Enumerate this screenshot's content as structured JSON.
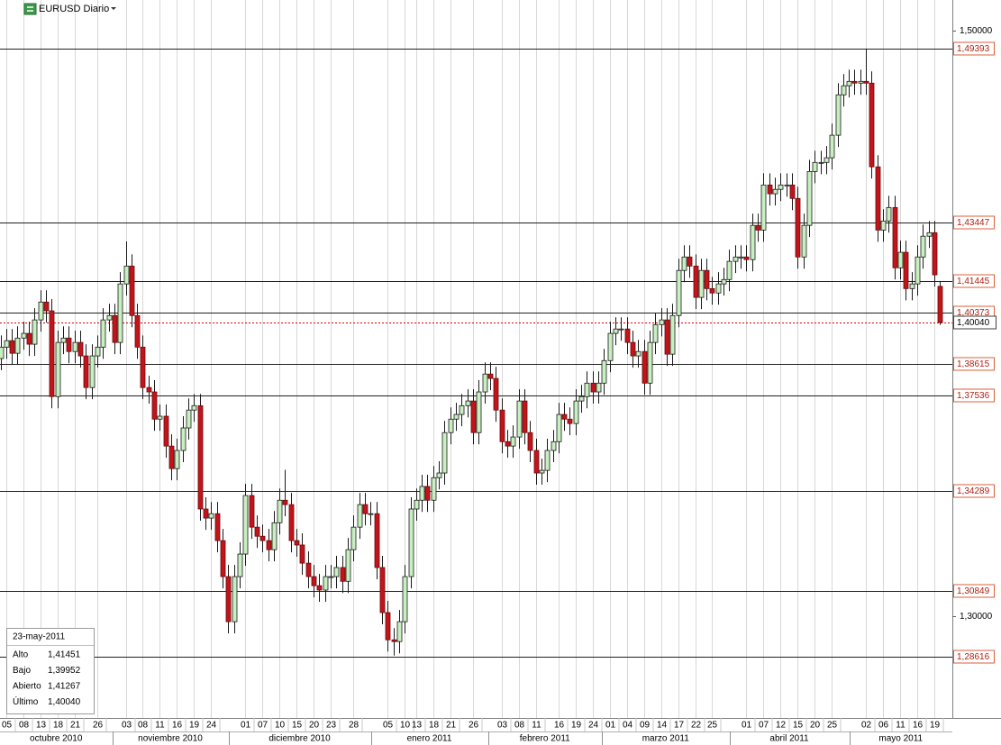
{
  "chart_data": {
    "type": "candlestick",
    "title": "EURUSD Diario",
    "x": [
      null,
      "05",
      null,
      null,
      "08",
      null,
      null,
      "13",
      null,
      null,
      "18",
      null,
      null,
      "21",
      null,
      null,
      null,
      "26",
      null,
      null,
      null,
      null,
      "03",
      null,
      null,
      "08",
      null,
      null,
      "11",
      null,
      null,
      "16",
      null,
      null,
      "19",
      null,
      null,
      "24",
      null,
      null,
      null,
      null,
      null,
      "01",
      null,
      null,
      "07",
      null,
      null,
      "10",
      null,
      null,
      "15",
      null,
      null,
      "20",
      null,
      null,
      "23",
      null,
      null,
      null,
      "28",
      null,
      null,
      null,
      null,
      null,
      "05",
      null,
      null,
      "10",
      null,
      "13",
      null,
      null,
      "18",
      null,
      null,
      "21",
      null,
      null,
      null,
      "26",
      null,
      null,
      null,
      null,
      "03",
      null,
      null,
      "08",
      null,
      null,
      "11",
      null,
      null,
      null,
      "16",
      null,
      null,
      "19",
      null,
      null,
      "24",
      null,
      null,
      "01",
      null,
      null,
      "04",
      null,
      null,
      "09",
      null,
      null,
      "14",
      null,
      null,
      "17",
      null,
      null,
      "22",
      null,
      null,
      "25",
      null,
      null,
      null,
      null,
      null,
      "01",
      null,
      null,
      "07",
      null,
      null,
      "12",
      null,
      null,
      "15",
      null,
      null,
      "20",
      null,
      null,
      "25",
      null,
      null,
      null,
      null,
      null,
      "02",
      null,
      null,
      "06",
      null,
      null,
      "11",
      null,
      null,
      "16",
      null,
      null,
      "19",
      null
    ],
    "months": [
      "octubre 2010",
      "noviembre 2010",
      "diciembre 2010",
      "enero 2011",
      "febrero 2011",
      "marzo 2011",
      "abril 2011",
      "mayo 2011"
    ],
    "open": [
      1.388,
      1.3919,
      1.3941,
      1.3898,
      1.395,
      1.3966,
      1.3929,
      1.4012,
      1.4073,
      1.4043,
      1.375,
      1.3935,
      1.395,
      1.3904,
      1.3935,
      1.3889,
      1.3781,
      1.3889,
      1.3919,
      1.4012,
      1.4027,
      1.3935,
      1.4135,
      1.4196,
      1.4027,
      1.3919,
      1.3781,
      1.3766,
      1.3673,
      1.3683,
      1.3581,
      1.3504,
      1.3566,
      1.3643,
      1.3704,
      1.3719,
      1.3366,
      1.3335,
      1.335,
      1.3258,
      1.3135,
      1.2981,
      1.3135,
      1.3212,
      1.3412,
      1.3304,
      1.3273,
      1.3258,
      1.3227,
      1.3319,
      1.3396,
      1.3381,
      1.3258,
      1.3243,
      1.3181,
      1.3135,
      1.3104,
      1.3089,
      1.3135,
      1.3135,
      1.3166,
      1.3119,
      1.3227,
      1.3304,
      1.3381,
      1.335,
      1.335,
      1.3166,
      1.3012,
      1.2919,
      1.2913,
      1.2981,
      1.3135,
      1.3366,
      1.3396,
      1.3443,
      1.3396,
      1.3473,
      1.3489,
      1.3627,
      1.3673,
      1.3689,
      1.3719,
      1.3735,
      1.3627,
      1.3766,
      1.3827,
      1.3812,
      1.3704,
      1.3596,
      1.3581,
      1.3612,
      1.3735,
      1.3627,
      1.3566,
      1.3489,
      1.3498,
      1.3566,
      1.3596,
      1.3689,
      1.3673,
      1.3658,
      1.3735,
      1.375,
      1.3796,
      1.3766,
      1.3796,
      1.3873,
      1.3966,
      1.3981,
      1.3981,
      1.3935,
      1.3889,
      1.3904,
      1.3796,
      1.3935,
      1.3996,
      1.4012,
      1.3895,
      1.4027,
      1.4181,
      1.4227,
      1.4196,
      1.4089,
      1.4181,
      1.4119,
      1.4104,
      1.4135,
      1.415,
      1.4212,
      1.4227,
      1.4227,
      1.4218,
      1.4335,
      1.4319,
      1.4473,
      1.4443,
      1.4458,
      1.4473,
      1.4473,
      1.4427,
      1.4227,
      1.4335,
      1.4519,
      1.455,
      1.455,
      1.4566,
      1.4643,
      1.4781,
      1.4812,
      1.4827,
      1.4821,
      1.4827,
      1.4821,
      1.4535,
      1.4319,
      1.435,
      1.4396,
      1.419,
      1.4243,
      1.4119,
      1.4135,
      1.4227,
      1.4298,
      1.431,
      1.41267
    ],
    "high": [
      1.3959,
      1.3981,
      1.3981,
      1.399,
      1.4006,
      1.4006,
      1.4052,
      1.4113,
      1.4113,
      1.4083,
      1.3975,
      1.399,
      1.399,
      1.3975,
      1.3975,
      1.3929,
      1.3929,
      1.3959,
      1.4052,
      1.4067,
      1.4067,
      1.4175,
      1.428,
      1.4236,
      1.4067,
      1.3959,
      1.3821,
      1.3806,
      1.3723,
      1.3723,
      1.3621,
      1.3606,
      1.3683,
      1.3744,
      1.3759,
      1.3759,
      1.3406,
      1.339,
      1.339,
      1.3298,
      1.3175,
      1.3175,
      1.3252,
      1.3452,
      1.3452,
      1.3344,
      1.3313,
      1.3298,
      1.3359,
      1.3436,
      1.35,
      1.3421,
      1.3298,
      1.3283,
      1.3221,
      1.3175,
      1.3144,
      1.3175,
      1.3175,
      1.3206,
      1.3206,
      1.3267,
      1.3344,
      1.3421,
      1.3421,
      1.339,
      1.339,
      1.3206,
      1.3052,
      1.2959,
      1.3021,
      1.3175,
      1.3406,
      1.3436,
      1.3483,
      1.3483,
      1.3513,
      1.3529,
      1.3667,
      1.3713,
      1.3729,
      1.3759,
      1.3775,
      1.3775,
      1.3806,
      1.3867,
      1.3867,
      1.3852,
      1.3744,
      1.3636,
      1.3652,
      1.3775,
      1.3775,
      1.3667,
      1.3606,
      1.3538,
      1.3606,
      1.3636,
      1.3729,
      1.3729,
      1.3713,
      1.3775,
      1.379,
      1.3836,
      1.3836,
      1.3836,
      1.3913,
      1.4006,
      1.4021,
      1.4021,
      1.4021,
      1.3975,
      1.3944,
      1.3944,
      1.3975,
      1.4036,
      1.4052,
      1.4052,
      1.4067,
      1.4221,
      1.4267,
      1.4267,
      1.4236,
      1.4221,
      1.4221,
      1.4159,
      1.4175,
      1.419,
      1.4252,
      1.4267,
      1.4267,
      1.4267,
      1.4375,
      1.4375,
      1.4513,
      1.4513,
      1.4498,
      1.4513,
      1.4513,
      1.4513,
      1.4467,
      1.4375,
      1.4559,
      1.459,
      1.459,
      1.4606,
      1.4683,
      1.4821,
      1.4852,
      1.4867,
      1.4867,
      1.4867,
      1.4939,
      1.4861,
      1.4575,
      1.439,
      1.4436,
      1.4436,
      1.4283,
      1.4283,
      1.4175,
      1.4267,
      1.4338,
      1.435,
      1.435,
      1.41451
    ],
    "low": [
      1.384,
      1.3879,
      1.3858,
      1.3858,
      1.391,
      1.3889,
      1.3889,
      1.3972,
      1.4003,
      1.371,
      1.371,
      1.3895,
      1.3864,
      1.3864,
      1.3849,
      1.3741,
      1.3741,
      1.3849,
      1.3879,
      1.3972,
      1.3895,
      1.3895,
      1.4095,
      1.3987,
      1.3879,
      1.3741,
      1.3726,
      1.3633,
      1.3633,
      1.3541,
      1.3464,
      1.3464,
      1.3526,
      1.3603,
      1.3664,
      1.3326,
      1.3295,
      1.3295,
      1.3218,
      1.3095,
      1.2941,
      1.2941,
      1.3095,
      1.3172,
      1.3264,
      1.3233,
      1.3218,
      1.3187,
      1.3187,
      1.3279,
      1.3341,
      1.3218,
      1.3203,
      1.3141,
      1.3095,
      1.3064,
      1.3049,
      1.3049,
      1.3095,
      1.3095,
      1.3079,
      1.3079,
      1.3187,
      1.3264,
      1.331,
      1.331,
      1.3126,
      1.2972,
      1.2879,
      1.2865,
      1.2873,
      1.2941,
      1.3095,
      1.3326,
      1.3356,
      1.3356,
      1.3356,
      1.3433,
      1.3449,
      1.3587,
      1.3633,
      1.3649,
      1.3679,
      1.3587,
      1.3587,
      1.3726,
      1.3772,
      1.3664,
      1.3556,
      1.3541,
      1.3541,
      1.3572,
      1.3587,
      1.3526,
      1.3449,
      1.3449,
      1.3458,
      1.3526,
      1.3556,
      1.3633,
      1.3618,
      1.3618,
      1.3695,
      1.371,
      1.3726,
      1.3726,
      1.3756,
      1.3833,
      1.3926,
      1.3941,
      1.3895,
      1.3849,
      1.3849,
      1.3756,
      1.3756,
      1.3895,
      1.3956,
      1.3855,
      1.3855,
      1.3987,
      1.4141,
      1.4156,
      1.4049,
      1.4049,
      1.4079,
      1.4064,
      1.4064,
      1.4095,
      1.411,
      1.4172,
      1.4187,
      1.4178,
      1.4178,
      1.4279,
      1.4279,
      1.4403,
      1.4403,
      1.4418,
      1.4433,
      1.4387,
      1.4187,
      1.4187,
      1.4295,
      1.4479,
      1.451,
      1.451,
      1.4526,
      1.4603,
      1.4741,
      1.4772,
      1.4781,
      1.4781,
      1.4781,
      1.4495,
      1.4279,
      1.4279,
      1.431,
      1.415,
      1.415,
      1.4079,
      1.4079,
      1.4095,
      1.4187,
      1.4258,
      1.4126,
      1.39952
    ],
    "close": [
      1.3919,
      1.3941,
      1.3898,
      1.395,
      1.3966,
      1.3929,
      1.4012,
      1.4073,
      1.4043,
      1.375,
      1.3935,
      1.395,
      1.3904,
      1.3935,
      1.3889,
      1.3781,
      1.3889,
      1.3919,
      1.4012,
      1.4027,
      1.3935,
      1.4135,
      1.4196,
      1.4027,
      1.3919,
      1.3781,
      1.3766,
      1.3673,
      1.3683,
      1.3581,
      1.3504,
      1.3566,
      1.3643,
      1.3704,
      1.3719,
      1.3366,
      1.3335,
      1.335,
      1.3258,
      1.3135,
      1.2981,
      1.3135,
      1.3212,
      1.3412,
      1.3304,
      1.3273,
      1.3258,
      1.3227,
      1.3319,
      1.3396,
      1.3381,
      1.3258,
      1.3243,
      1.3181,
      1.3135,
      1.3104,
      1.3089,
      1.3135,
      1.3135,
      1.3166,
      1.3119,
      1.3227,
      1.3304,
      1.3381,
      1.335,
      1.335,
      1.3166,
      1.3012,
      1.2919,
      1.2913,
      1.2981,
      1.3135,
      1.3366,
      1.3396,
      1.3443,
      1.3396,
      1.3473,
      1.3489,
      1.3627,
      1.3673,
      1.3689,
      1.3719,
      1.3735,
      1.3627,
      1.3766,
      1.3827,
      1.3812,
      1.3704,
      1.3596,
      1.3581,
      1.3612,
      1.3735,
      1.3627,
      1.3566,
      1.3489,
      1.3498,
      1.3566,
      1.3596,
      1.3689,
      1.3673,
      1.3658,
      1.3735,
      1.375,
      1.3796,
      1.3766,
      1.3796,
      1.3873,
      1.3966,
      1.3981,
      1.3981,
      1.3935,
      1.3889,
      1.3904,
      1.3796,
      1.3935,
      1.3996,
      1.4012,
      1.3895,
      1.4027,
      1.4181,
      1.4227,
      1.4196,
      1.4089,
      1.4181,
      1.4119,
      1.4104,
      1.4135,
      1.415,
      1.4212,
      1.4227,
      1.4227,
      1.4218,
      1.4335,
      1.4319,
      1.4473,
      1.4443,
      1.4458,
      1.4473,
      1.4473,
      1.4427,
      1.4227,
      1.4335,
      1.4519,
      1.455,
      1.455,
      1.4566,
      1.4643,
      1.4781,
      1.4812,
      1.4827,
      1.4821,
      1.4827,
      1.4821,
      1.4535,
      1.4319,
      1.435,
      1.4396,
      1.419,
      1.4243,
      1.4119,
      1.4135,
      1.4227,
      1.4298,
      1.431,
      1.4166,
      1.4004
    ],
    "up_color": "#c8efc0",
    "down_color": "#c3141c",
    "ylim": [
      1.2652,
      1.5105
    ],
    "yticks": [
      {
        "value": 1.5,
        "label": "1,50000"
      },
      {
        "value": 1.3,
        "label": "1,30000"
      }
    ],
    "levels": [
      {
        "value": 1.49393,
        "label": "1,49393"
      },
      {
        "value": 1.43447,
        "label": "1,43447"
      },
      {
        "value": 1.41445,
        "label": "1,41445"
      },
      {
        "value": 1.40373,
        "label": "1,40373"
      },
      {
        "value": 1.38615,
        "label": "1,38615"
      },
      {
        "value": 1.37536,
        "label": "1,37536"
      },
      {
        "value": 1.34289,
        "label": "1,34289"
      },
      {
        "value": 1.30849,
        "label": "1,30849"
      },
      {
        "value": 1.28616,
        "label": "1,28616"
      }
    ],
    "last_price": {
      "value": 1.4004,
      "label": "1,40040"
    },
    "info_box": {
      "date": "23-may-2011",
      "rows": [
        {
          "label": "Alto",
          "value": "1,41451"
        },
        {
          "label": "Bajo",
          "value": "1,39952"
        },
        {
          "label": "Abierto",
          "value": "1,41267"
        },
        {
          "label": "Último",
          "value": "1,40040"
        }
      ]
    }
  }
}
